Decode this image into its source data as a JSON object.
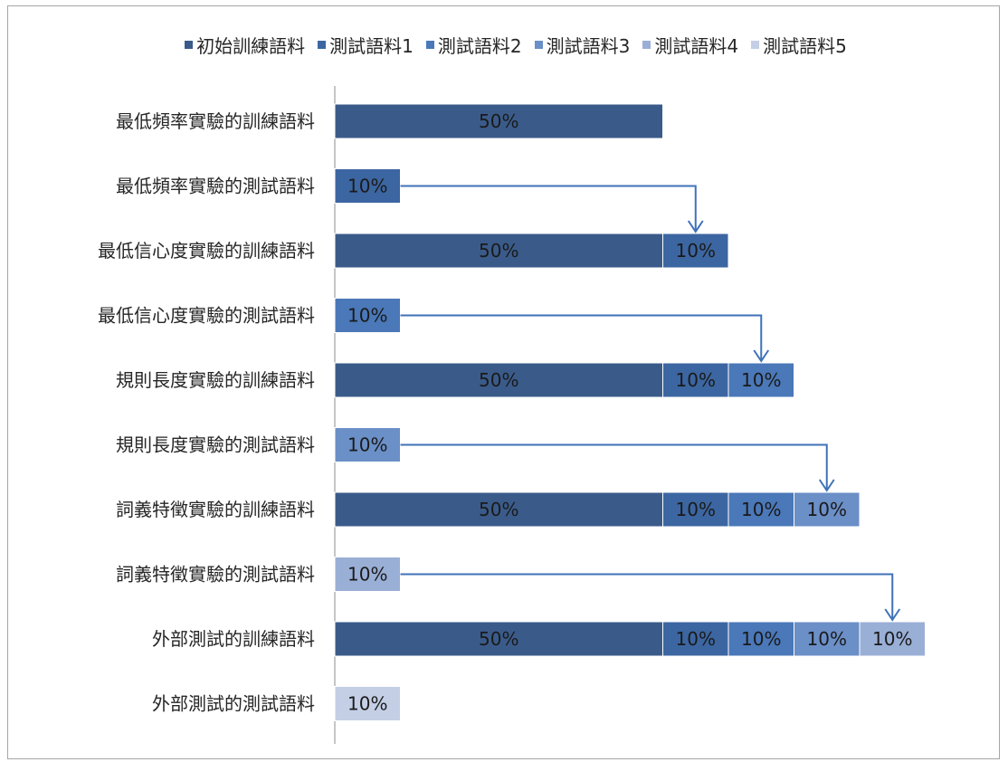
{
  "chart_data": {
    "type": "bar",
    "orientation": "horizontal",
    "stacked": true,
    "categories": [
      "最低頻率實驗的訓練語料",
      "最低頻率實驗的測試語料",
      "最低信心度實驗的訓練語料",
      "最低信心度實驗的測試語料",
      "規則長度實驗的訓練語料",
      "規則長度實驗的測試語料",
      "詞義特徵實驗的訓練語料",
      "詞義特徵實驗的測試語料",
      "外部測試的訓練語料",
      "外部測試的測試語料"
    ],
    "series": [
      {
        "name": "初始訓練語料",
        "color": "#3a5b8a",
        "values": [
          50,
          0,
          50,
          0,
          50,
          0,
          50,
          0,
          50,
          0
        ]
      },
      {
        "name": "測試語料1",
        "color": "#3c66a1",
        "values": [
          0,
          10,
          10,
          0,
          10,
          0,
          10,
          0,
          10,
          0
        ]
      },
      {
        "name": "測試語料2",
        "color": "#4a78b8",
        "values": [
          0,
          0,
          0,
          10,
          10,
          0,
          10,
          0,
          10,
          0
        ]
      },
      {
        "name": "測試語料3",
        "color": "#6b8fc7",
        "values": [
          0,
          0,
          0,
          0,
          0,
          10,
          10,
          0,
          10,
          0
        ]
      },
      {
        "name": "測試語料4",
        "color": "#9aafd6",
        "values": [
          0,
          0,
          0,
          0,
          0,
          0,
          0,
          10,
          10,
          0
        ]
      },
      {
        "name": "測試語料5",
        "color": "#c4cfe6",
        "values": [
          0,
          0,
          0,
          0,
          0,
          0,
          0,
          0,
          0,
          10
        ]
      }
    ],
    "value_suffix": "%",
    "xlim": [
      0,
      100
    ],
    "legend_position": "top",
    "grid": false,
    "arrows": [
      {
        "from_row": 1,
        "to_row": 2
      },
      {
        "from_row": 3,
        "to_row": 4
      },
      {
        "from_row": 5,
        "to_row": 6
      },
      {
        "from_row": 7,
        "to_row": 8
      }
    ]
  }
}
